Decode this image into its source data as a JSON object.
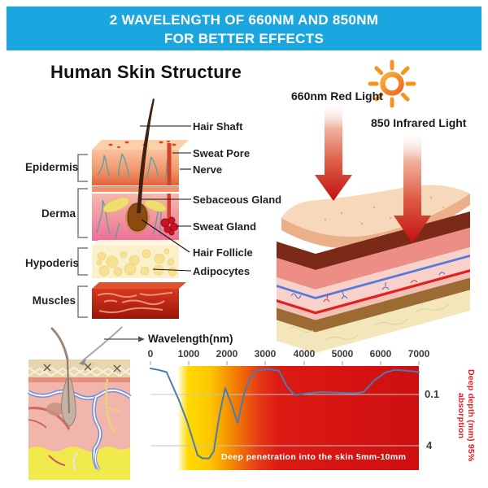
{
  "banner": {
    "line1": "2 WAVELENGTH OF 660NM AND 850NM",
    "line2": "FOR BETTER EFFECTS",
    "bg_color": "#1ba6df",
    "text_color": "#ffffff"
  },
  "skin_structure": {
    "title": "Human Skin Structure",
    "layers": [
      {
        "label": "Epidermis"
      },
      {
        "label": "Derma"
      },
      {
        "label": "Hypoderis"
      },
      {
        "label": "Muscles"
      }
    ],
    "parts": [
      {
        "label": "Hair Shaft"
      },
      {
        "label": "Sweat Pore"
      },
      {
        "label": "Nerve"
      },
      {
        "label": "Sebaceous Gland"
      },
      {
        "label": "Sweat Gland"
      },
      {
        "label": "Hair Follicle"
      },
      {
        "label": "Adipocytes"
      }
    ]
  },
  "light_panel": {
    "red_light_label": "660nm Red Light",
    "infrared_light_label": "850 Infrared Light",
    "icons": [
      {
        "name": "sun-icon",
        "color": "#f7941e"
      },
      {
        "name": "down-arrow-icon",
        "color": "#c21111"
      }
    ]
  },
  "chart_data": {
    "type": "line",
    "title": "Wavelength(nm)",
    "xlabel": "Wavelength(nm)",
    "ylabel": "Deep depth (mm) 95% absorption",
    "x_ticks": [
      "0",
      "1000",
      "2000",
      "3000",
      "4000",
      "5000",
      "6000",
      "7000"
    ],
    "xlim": [
      0,
      7000
    ],
    "y_tick_labels": [
      "0.1",
      "4"
    ],
    "y_scale_note": "depth in mm increases downward on a compressed (log-like) scale; gridlines at 0.1 mm and 4 mm",
    "annotation": "Deep penetration into the skin 5mm-10mm",
    "grid": true,
    "legend_position": "none",
    "background_gradient": [
      "#ffffff",
      "#ffd900",
      "#f58a00",
      "#e63c17",
      "#ce0f10"
    ],
    "series": [
      {
        "name": "95% absorption depth",
        "x": [
          0,
          210,
          420,
          740,
          950,
          1230,
          1360,
          1530,
          1650,
          1800,
          1950,
          2120,
          2270,
          2440,
          2590,
          2760,
          3080,
          3350,
          3560,
          3760,
          4030,
          4460,
          4880,
          5300,
          5560,
          5830,
          6110,
          6360,
          6680,
          7000
        ],
        "depth_mm": [
          0.015,
          0.017,
          0.02,
          0.15,
          0.67,
          8,
          10,
          10,
          6,
          0.43,
          0.063,
          0.21,
          0.77,
          0.1,
          0.031,
          0.018,
          0.016,
          0.018,
          0.056,
          0.105,
          0.094,
          0.084,
          0.088,
          0.092,
          0.084,
          0.037,
          0.021,
          0.017,
          0.018,
          0.02
        ]
      }
    ]
  }
}
